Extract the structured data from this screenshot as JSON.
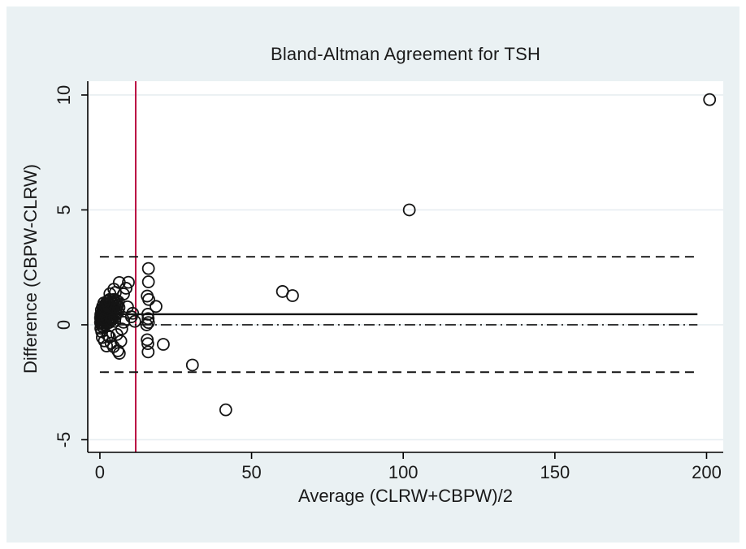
{
  "figure": {
    "outer_background": "#ffffff",
    "inner_background": "#eaf1f3",
    "plot_background": "#ffffff",
    "gridline_color": "#e7eef1",
    "axis_color": "#000000"
  },
  "chart_data": {
    "type": "scatter",
    "title": "Bland-Altman Agreement for TSH",
    "xlabel": "Average (CLRW+CBPW)/2",
    "ylabel": "Difference (CBPW-CLRW)",
    "xticks": [
      0,
      50,
      100,
      150,
      200
    ],
    "yticks": [
      -5,
      0,
      5,
      10
    ],
    "xlim": [
      -4,
      205.5
    ],
    "ylim": [
      -5.55,
      10.6
    ],
    "grid": "horizontal-at-yticks",
    "legend": "none",
    "marker": {
      "shape": "open-circle",
      "color": "#141414",
      "radius_px": 7
    },
    "line_span_x": [
      0,
      197
    ],
    "lines": {
      "mean_difference": {
        "y": 0.46,
        "style": "solid",
        "color": "#141414"
      },
      "upper_limit_of_agreement": {
        "y": 2.96,
        "style": "dashed",
        "color": "#141414"
      },
      "lower_limit_of_agreement": {
        "y": -2.06,
        "style": "dashed",
        "color": "#141414"
      },
      "zero_reference": {
        "y": 0,
        "style": "dashdot",
        "color": "#141414"
      },
      "vertical_cutoff": {
        "x": 11.8,
        "style": "solid",
        "color": "#bb1144"
      }
    },
    "points": [
      [
        201,
        9.8
      ],
      [
        102,
        5.0
      ],
      [
        60.2,
        1.45
      ],
      [
        63.5,
        1.27
      ],
      [
        41.5,
        -3.7
      ],
      [
        30.5,
        -1.75
      ],
      [
        20.9,
        -0.85
      ],
      [
        18.5,
        0.8
      ],
      [
        16,
        2.45
      ],
      [
        16,
        1.87
      ],
      [
        15.6,
        1.25
      ],
      [
        16.1,
        1.1
      ],
      [
        15.8,
        0.46
      ],
      [
        15.9,
        0.27
      ],
      [
        16,
        0.1
      ],
      [
        15.4,
        0.0
      ],
      [
        15.6,
        -0.65
      ],
      [
        15.8,
        -0.82
      ],
      [
        15.9,
        -1.18
      ],
      [
        10.8,
        0.5
      ],
      [
        11.5,
        0.15
      ],
      [
        9.4,
        1.85
      ],
      [
        10.4,
        0.35
      ],
      [
        9.1,
        0.78
      ],
      [
        6.4,
        1.84
      ],
      [
        8.6,
        1.59
      ],
      [
        5.1,
        1.41
      ],
      [
        7.8,
        1.34
      ],
      [
        4.6,
        1.55
      ],
      [
        3.3,
        1.35
      ],
      [
        7.8,
        0.11
      ],
      [
        7.2,
        -0.18
      ],
      [
        5.6,
        -0.42
      ],
      [
        3.2,
        -0.53
      ],
      [
        6.9,
        -0.71
      ],
      [
        4.5,
        -0.95
      ],
      [
        6.4,
        -1.24
      ],
      [
        3.7,
        -0.8
      ],
      [
        5.9,
        -1.13
      ],
      [
        2.7,
        -0.47
      ],
      [
        1.5,
        -0.7
      ],
      [
        2.2,
        -0.92
      ],
      [
        0.8,
        -0.55
      ],
      [
        0.4,
        0.05
      ],
      [
        0.5,
        0.2
      ],
      [
        0.6,
        0.35
      ],
      [
        0.7,
        0.1
      ],
      [
        0.8,
        0.5
      ],
      [
        0.9,
        0.25
      ],
      [
        1.0,
        0.6
      ],
      [
        1.1,
        0.4
      ],
      [
        1.2,
        0.15
      ],
      [
        1.3,
        0.7
      ],
      [
        1.4,
        0.5
      ],
      [
        1.5,
        0.3
      ],
      [
        1.6,
        0.8
      ],
      [
        1.7,
        0.6
      ],
      [
        1.8,
        0.4
      ],
      [
        1.9,
        0.9
      ],
      [
        2.0,
        0.2
      ],
      [
        2.1,
        0.7
      ],
      [
        2.2,
        0.5
      ],
      [
        2.3,
        1.0
      ],
      [
        2.4,
        0.35
      ],
      [
        2.5,
        0.8
      ],
      [
        2.6,
        0.6
      ],
      [
        2.7,
        1.05
      ],
      [
        2.8,
        0.45
      ],
      [
        2.9,
        0.9
      ],
      [
        3.0,
        0.7
      ],
      [
        3.1,
        0.3
      ],
      [
        3.2,
        1.1
      ],
      [
        3.3,
        0.55
      ],
      [
        3.5,
        0.85
      ],
      [
        3.6,
        0.65
      ],
      [
        3.8,
        1.0
      ],
      [
        3.9,
        0.45
      ],
      [
        4.0,
        0.75
      ],
      [
        4.2,
        0.95
      ],
      [
        4.4,
        0.6
      ],
      [
        4.6,
        1.1
      ],
      [
        4.8,
        0.8
      ],
      [
        5.0,
        0.95
      ],
      [
        5.2,
        0.7
      ],
      [
        5.5,
        1.05
      ],
      [
        5.8,
        0.85
      ],
      [
        6.1,
        1.0
      ],
      [
        0.3,
        -0.15
      ],
      [
        0.6,
        -0.3
      ],
      [
        1.0,
        -0.1
      ],
      [
        1.4,
        0.0
      ],
      [
        1.8,
        0.1
      ],
      [
        2.2,
        0.05
      ],
      [
        2.6,
        0.2
      ],
      [
        3.0,
        0.1
      ],
      [
        3.4,
        0.25
      ],
      [
        0.5,
        0.65
      ],
      [
        0.9,
        0.8
      ],
      [
        1.3,
        0.95
      ],
      [
        0.7,
        -0.05
      ],
      [
        1.1,
        0.55
      ],
      [
        1.7,
        0.25
      ],
      [
        2.1,
        0.35
      ],
      [
        2.9,
        0.4
      ],
      [
        0.2,
        0.3
      ],
      [
        0.3,
        0.45
      ],
      [
        0.2,
        0.1
      ],
      [
        4.1,
        0.3
      ],
      [
        4.5,
        0.45
      ],
      [
        5.0,
        0.3
      ],
      [
        3.7,
        0.2
      ],
      [
        4.9,
        0.15
      ],
      [
        5.4,
        0.5
      ],
      [
        6.0,
        0.55
      ],
      [
        6.3,
        0.75
      ],
      [
        2.4,
        0.65
      ]
    ]
  }
}
